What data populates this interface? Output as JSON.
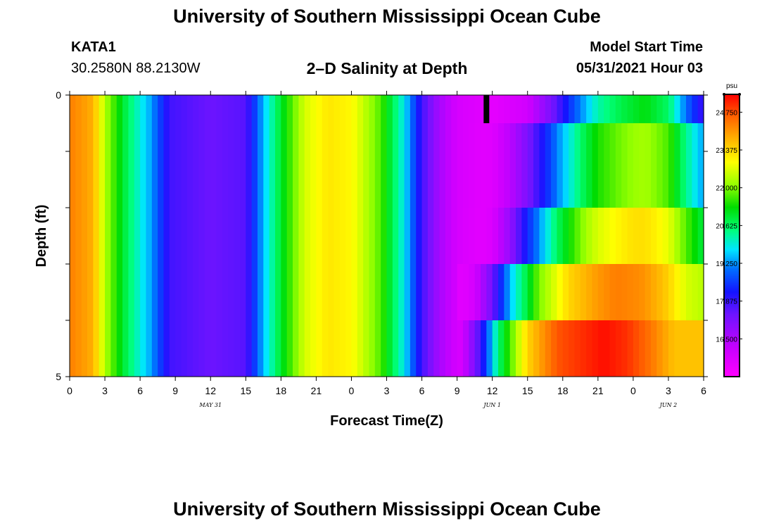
{
  "header": {
    "title": "University of Southern Mississippi Ocean Cube",
    "station": "KATA1",
    "coords": "30.2580N  88.2130W",
    "subtitle": "2–D Salinity at Depth",
    "start_label": "Model Start Time",
    "start_value": "05/31/2021 Hour 03"
  },
  "footer": {
    "title": "University of Southern Mississippi Ocean Cube"
  },
  "chart_data": {
    "type": "heatmap",
    "title": "2–D Salinity at Depth",
    "xlabel": "Forecast Time(Z)",
    "ylabel": "Depth (ft)",
    "x_tick_labels": [
      "0",
      "3",
      "6",
      "9",
      "12",
      "15",
      "18",
      "21",
      "0",
      "3",
      "6",
      "9",
      "12",
      "15",
      "18",
      "21",
      "0",
      "3",
      "6"
    ],
    "date_labels": [
      {
        "text": "MAY 31",
        "hour": 12
      },
      {
        "text": "JUN 1",
        "hour": 36
      },
      {
        "text": "JUN 2",
        "hour": 51
      }
    ],
    "x_range_hours": [
      0,
      54
    ],
    "y_range_ft": [
      0,
      5
    ],
    "y_tick_labels": [
      "0",
      "5"
    ],
    "colorbar": {
      "unit": "psu",
      "vmin": 15.125,
      "vmax": 25.4,
      "ticks": [
        "24.750",
        "23.375",
        "22.000",
        "20.625",
        "19.250",
        "17.875",
        "16.500"
      ],
      "tick_values": [
        24.75,
        23.375,
        22.0,
        20.625,
        19.25,
        17.875,
        16.5
      ]
    },
    "depth_layers_ft": [
      0.5,
      1.5,
      2.5,
      3.5,
      4.5
    ],
    "surface_layer_bottom_ft": 0.5,
    "missing_marker": {
      "hour": 35.5,
      "depth_from": 0,
      "depth_to": 0.5
    },
    "surface_series": [
      {
        "hour": 0,
        "value": 24.3
      },
      {
        "hour": 2,
        "value": 23.8
      },
      {
        "hour": 3,
        "value": 22.3
      },
      {
        "hour": 5,
        "value": 20.6
      },
      {
        "hour": 7,
        "value": 19.3
      },
      {
        "hour": 8.5,
        "value": 17.8
      },
      {
        "hour": 12,
        "value": 17.4
      },
      {
        "hour": 15,
        "value": 17.6
      },
      {
        "hour": 16.5,
        "value": 19.5
      },
      {
        "hour": 18,
        "value": 21.0
      },
      {
        "hour": 20,
        "value": 22.6
      },
      {
        "hour": 22,
        "value": 23.2
      },
      {
        "hour": 24,
        "value": 23.0
      },
      {
        "hour": 26.5,
        "value": 21.7
      },
      {
        "hour": 28.5,
        "value": 19.8
      },
      {
        "hour": 30,
        "value": 17.8
      },
      {
        "hour": 31.5,
        "value": 16.6
      },
      {
        "hour": 33,
        "value": 15.9
      },
      {
        "hour": 36,
        "value": 15.6
      },
      {
        "hour": 39,
        "value": 16.0
      },
      {
        "hour": 41,
        "value": 17.2
      },
      {
        "hour": 43,
        "value": 18.8
      },
      {
        "hour": 45,
        "value": 20.2
      },
      {
        "hour": 47,
        "value": 20.8
      },
      {
        "hour": 49,
        "value": 21.2
      },
      {
        "hour": 51,
        "value": 20.6
      },
      {
        "hour": 52.5,
        "value": 19.0
      },
      {
        "hour": 54,
        "value": 17.8
      }
    ],
    "deep_series": [
      {
        "hour": 0,
        "value": 24.3
      },
      {
        "hour": 2,
        "value": 23.8
      },
      {
        "hour": 3,
        "value": 22.3
      },
      {
        "hour": 5,
        "value": 20.6
      },
      {
        "hour": 7,
        "value": 19.3
      },
      {
        "hour": 8.5,
        "value": 17.8
      },
      {
        "hour": 12,
        "value": 17.4
      },
      {
        "hour": 15,
        "value": 17.6
      },
      {
        "hour": 16.5,
        "value": 19.5
      },
      {
        "hour": 18,
        "value": 21.0
      },
      {
        "hour": 20,
        "value": 22.6
      },
      {
        "hour": 22,
        "value": 23.2
      },
      {
        "hour": 24,
        "value": 23.0
      },
      {
        "hour": 26.5,
        "value": 21.7
      },
      {
        "hour": 28.5,
        "value": 19.8
      },
      {
        "hour": 30,
        "value": 17.8
      },
      {
        "hour": 31.5,
        "value": 16.6
      },
      {
        "hour": 33,
        "value": 15.9
      },
      {
        "hour": 35,
        "value": 15.6
      },
      {
        "hour": 36,
        "value": 16.0
      },
      {
        "hour": 37.5,
        "value": 17.8
      },
      {
        "hour": 39,
        "value": 20.5
      },
      {
        "hour": 41.5,
        "value": 23.4
      },
      {
        "hour": 44,
        "value": 24.7
      },
      {
        "hour": 48,
        "value": 25.3
      },
      {
        "hour": 50,
        "value": 25.0
      },
      {
        "hour": 52,
        "value": 24.4
      },
      {
        "hour": 54,
        "value": 23.6
      }
    ],
    "layer_shift_hours": [
      0,
      2.5,
      1.2,
      0,
      -0.5
    ],
    "layer_lead_hours": [
      0,
      0,
      0,
      1.5,
      2.5
    ]
  }
}
